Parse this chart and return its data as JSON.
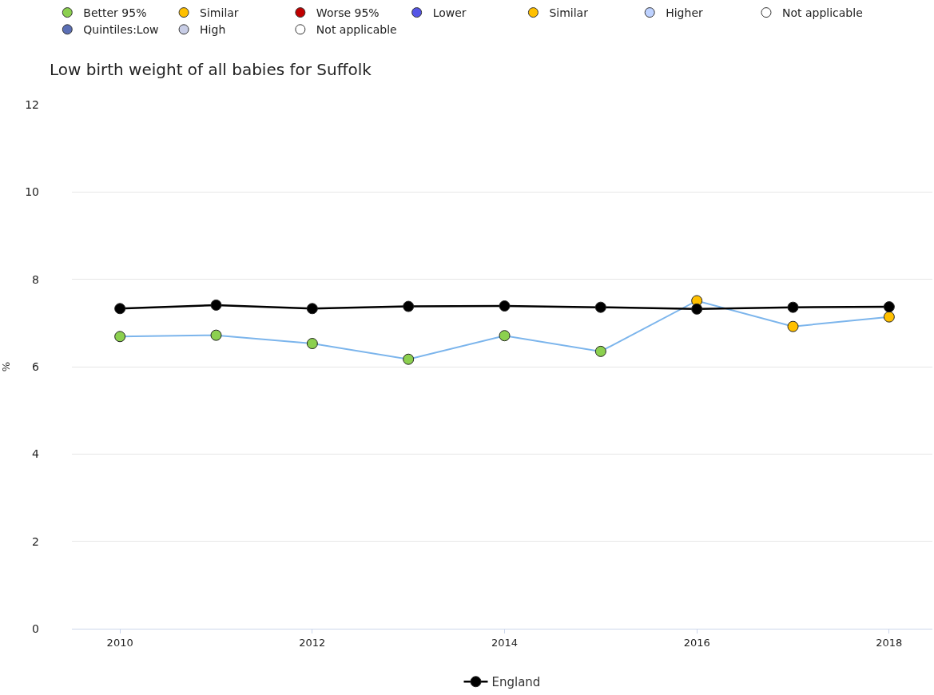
{
  "chart_data": {
    "type": "line",
    "title": "Low birth weight of all babies for Suffolk",
    "ylabel": "%",
    "x": [
      2010,
      2011,
      2012,
      2013,
      2014,
      2015,
      2016,
      2017,
      2018
    ],
    "xlim": [
      2009.5,
      2018.45
    ],
    "xticks": [
      2010,
      2012,
      2014,
      2016,
      2018
    ],
    "ylim": [
      0,
      12
    ],
    "yticks": [
      0,
      2,
      4,
      6,
      8,
      10,
      12
    ],
    "grid": "y",
    "legend": "top",
    "marker": "circle",
    "series": [
      {
        "color": "#7cb5ec",
        "colors": [
          "#8cd04f",
          "#8cd04f",
          "#8cd04f",
          "#8cd04f",
          "#8cd04f",
          "#8cd04f",
          "#ffc000",
          "#ffc000",
          "#ffc000"
        ],
        "values": [
          6.69,
          6.72,
          6.53,
          6.17,
          6.71,
          6.35,
          7.51,
          6.92,
          7.14
        ]
      },
      {
        "name": "England",
        "color": "#000000",
        "values": [
          7.33,
          7.41,
          7.33,
          7.38,
          7.39,
          7.36,
          7.32,
          7.36,
          7.37
        ]
      },
      {
        "name": "Better 95%",
        "color": "#8cd04f",
        "values": [
          null,
          null,
          null,
          null,
          null,
          null,
          null,
          null,
          null
        ]
      },
      {
        "name": "Similar",
        "color": "#ffc000",
        "values": [
          null,
          null,
          null,
          null,
          null,
          null,
          null,
          null,
          null
        ]
      },
      {
        "name": "Worse 95%",
        "color": "#c00000",
        "values": [
          null,
          null,
          null,
          null,
          null,
          null,
          null,
          null,
          null
        ]
      },
      {
        "name": "Lower",
        "color": "#5555e6",
        "values": [
          null,
          null,
          null,
          null,
          null,
          null,
          null,
          null,
          null
        ]
      },
      {
        "name": "Similar",
        "color": "#ffc000",
        "values": [
          null,
          null,
          null,
          null,
          null,
          null,
          null,
          null,
          null
        ]
      },
      {
        "name": "Higher",
        "color": "#bed2ff",
        "values": [
          null,
          null,
          null,
          null,
          null,
          null,
          null,
          null,
          null
        ]
      },
      {
        "name": "Not applicable",
        "color": "#ffffff",
        "values": [
          null,
          null,
          null,
          null,
          null,
          null,
          null,
          null,
          null
        ]
      },
      {
        "name": "Quintiles:Low",
        "color": "#5b6fb5",
        "values": [
          null,
          null,
          null,
          null,
          null,
          null,
          null,
          null,
          null
        ]
      },
      {
        "name": "High",
        "color": "#c8cde6",
        "values": [
          null,
          null,
          null,
          null,
          null,
          null,
          null,
          null,
          null
        ]
      },
      {
        "name": "Not applicable",
        "color": "#ffffff",
        "values": [
          null,
          null,
          null,
          null,
          null,
          null,
          null,
          null,
          null
        ]
      }
    ]
  }
}
